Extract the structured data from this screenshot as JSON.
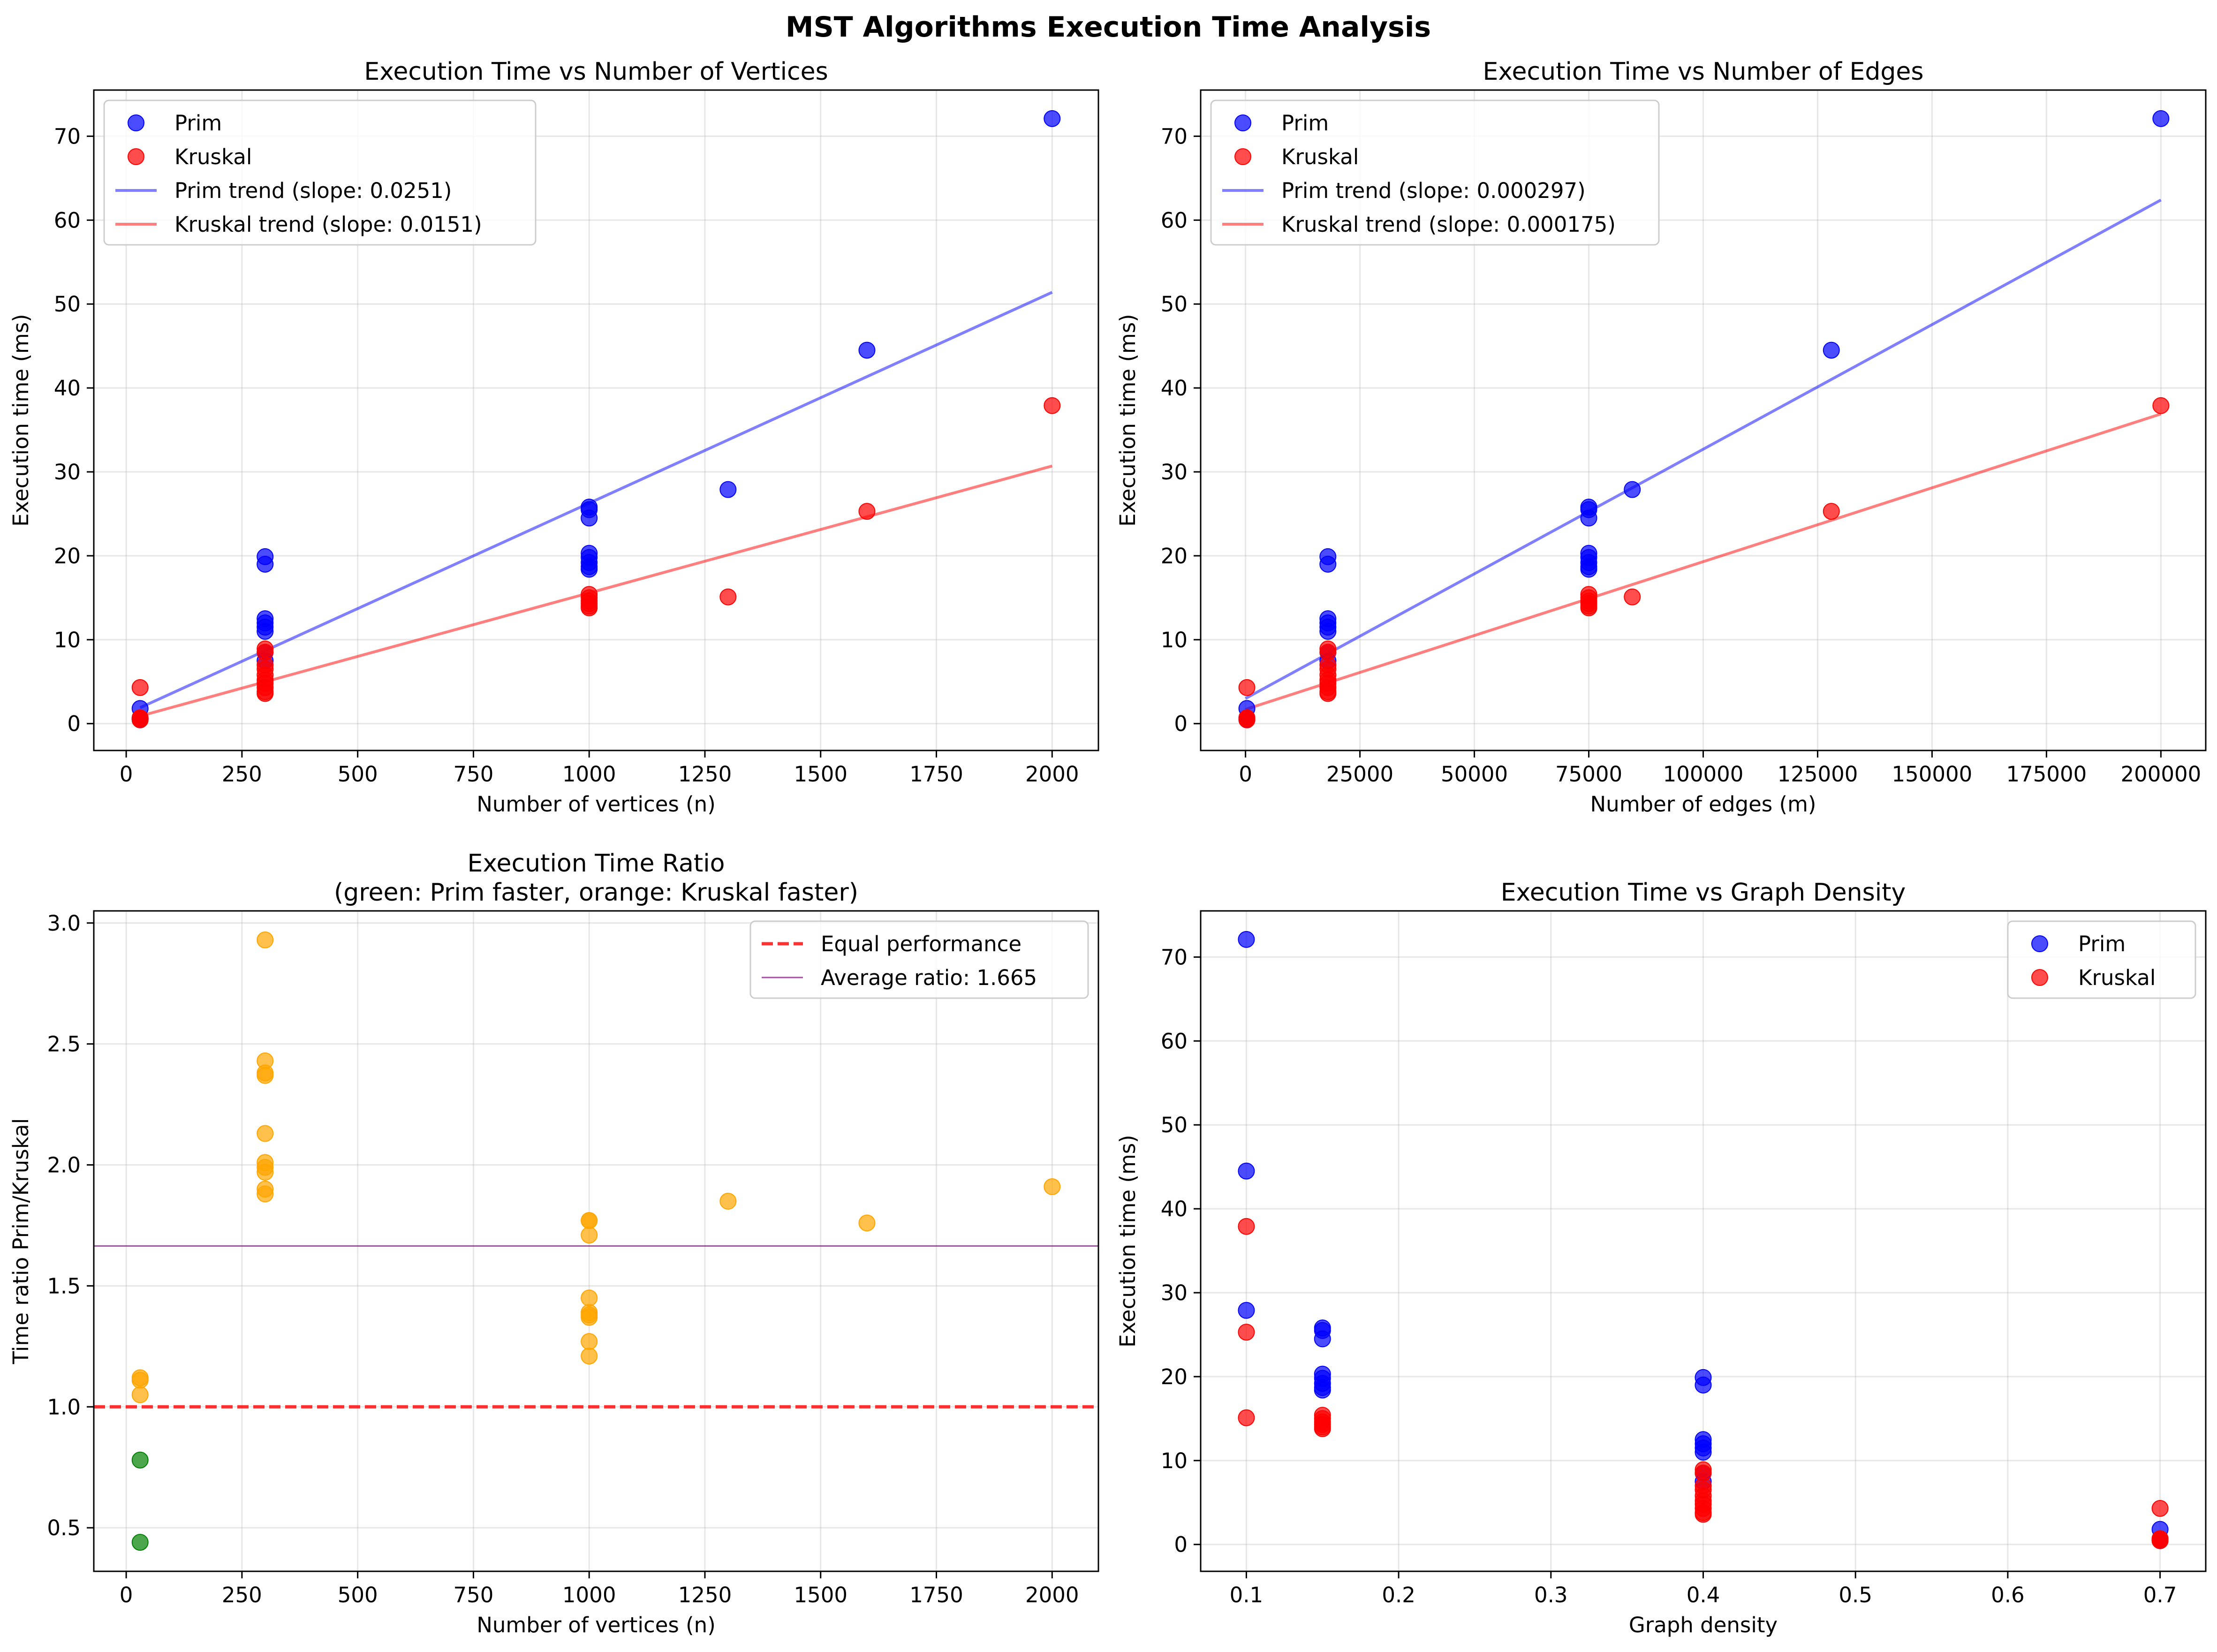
{
  "figure": {
    "suptitle": "MST Algorithms Execution Time Analysis"
  },
  "chart_data": [
    {
      "type": "scatter",
      "title": "Execution Time vs Number of Vertices",
      "xlabel": "Number of vertices (n)",
      "ylabel": "Execution time (ms)",
      "xlim": [
        -70,
        2100
      ],
      "ylim": [
        -3.2,
        75.5
      ],
      "xticks": [
        0,
        250,
        500,
        750,
        1000,
        1250,
        1500,
        1750,
        2000
      ],
      "yticks": [
        0,
        10,
        20,
        30,
        40,
        50,
        60,
        70
      ],
      "grid": true,
      "legend_position": "top-left",
      "series": [
        {
          "name": "Prim",
          "kind": "scatter",
          "color": "#0000ff",
          "points": [
            [
              30,
              1.8
            ],
            [
              30,
              0.6
            ],
            [
              30,
              0.5
            ],
            [
              300,
              19.9
            ],
            [
              300,
              19.0
            ],
            [
              300,
              12.5
            ],
            [
              300,
              12.0
            ],
            [
              300,
              11.5
            ],
            [
              300,
              11.0
            ],
            [
              300,
              8.5
            ],
            [
              300,
              7.5
            ],
            [
              1000,
              25.8
            ],
            [
              1000,
              25.5
            ],
            [
              1000,
              24.5
            ],
            [
              1000,
              20.3
            ],
            [
              1000,
              19.8
            ],
            [
              1000,
              19.2
            ],
            [
              1000,
              18.7
            ],
            [
              1000,
              18.4
            ],
            [
              1300,
              27.9
            ],
            [
              1600,
              44.5
            ],
            [
              2000,
              72.1
            ]
          ]
        },
        {
          "name": "Kruskal",
          "kind": "scatter",
          "color": "#ff0000",
          "points": [
            [
              30,
              4.3
            ],
            [
              30,
              0.7
            ],
            [
              30,
              0.6
            ],
            [
              30,
              0.45
            ],
            [
              300,
              8.9
            ],
            [
              300,
              8.5
            ],
            [
              300,
              7.0
            ],
            [
              300,
              6.5
            ],
            [
              300,
              5.8
            ],
            [
              300,
              5.2
            ],
            [
              300,
              4.8
            ],
            [
              300,
              4.3
            ],
            [
              300,
              3.8
            ],
            [
              300,
              3.6
            ],
            [
              1000,
              15.4
            ],
            [
              1000,
              15.0
            ],
            [
              1000,
              14.6
            ],
            [
              1000,
              14.3
            ],
            [
              1000,
              14.0
            ],
            [
              1000,
              13.8
            ],
            [
              1300,
              15.1
            ],
            [
              1600,
              25.3
            ],
            [
              2000,
              37.9
            ]
          ]
        },
        {
          "name": "Prim trend (slope: 0.0251)",
          "kind": "line",
          "color": "#0000ff",
          "points": [
            [
              30,
              1.9
            ],
            [
              2000,
              51.4
            ]
          ]
        },
        {
          "name": "Kruskal trend (slope: 0.0151)",
          "kind": "line",
          "color": "#ff0000",
          "points": [
            [
              30,
              0.9
            ],
            [
              2000,
              30.7
            ]
          ]
        }
      ]
    },
    {
      "type": "scatter",
      "title": "Execution Time vs Number of Edges",
      "xlabel": "Number of edges (m)",
      "ylabel": "Execution time (ms)",
      "xlim": [
        -9800,
        209800
      ],
      "ylim": [
        -3.2,
        75.5
      ],
      "xticks": [
        0,
        25000,
        50000,
        75000,
        100000,
        125000,
        150000,
        175000,
        200000
      ],
      "yticks": [
        0,
        10,
        20,
        30,
        40,
        50,
        60,
        70
      ],
      "grid": true,
      "legend_position": "top-left",
      "series": [
        {
          "name": "Prim",
          "kind": "scatter",
          "color": "#0000ff",
          "points": [
            [
              300,
              1.8
            ],
            [
              300,
              0.6
            ],
            [
              300,
              0.5
            ],
            [
              18000,
              19.9
            ],
            [
              18000,
              19.0
            ],
            [
              18000,
              12.5
            ],
            [
              18000,
              12.0
            ],
            [
              18000,
              11.5
            ],
            [
              18000,
              11.0
            ],
            [
              18000,
              8.5
            ],
            [
              18000,
              7.5
            ],
            [
              75000,
              25.8
            ],
            [
              75000,
              25.5
            ],
            [
              75000,
              24.5
            ],
            [
              75000,
              20.3
            ],
            [
              75000,
              19.8
            ],
            [
              75000,
              19.2
            ],
            [
              75000,
              18.7
            ],
            [
              75000,
              18.4
            ],
            [
              84500,
              27.9
            ],
            [
              128000,
              44.5
            ],
            [
              200000,
              72.1
            ]
          ]
        },
        {
          "name": "Kruskal",
          "kind": "scatter",
          "color": "#ff0000",
          "points": [
            [
              300,
              4.3
            ],
            [
              300,
              0.7
            ],
            [
              300,
              0.6
            ],
            [
              300,
              0.45
            ],
            [
              18000,
              8.9
            ],
            [
              18000,
              8.5
            ],
            [
              18000,
              7.0
            ],
            [
              18000,
              6.5
            ],
            [
              18000,
              5.8
            ],
            [
              18000,
              5.2
            ],
            [
              18000,
              4.8
            ],
            [
              18000,
              4.3
            ],
            [
              18000,
              3.8
            ],
            [
              18000,
              3.6
            ],
            [
              75000,
              15.4
            ],
            [
              75000,
              15.0
            ],
            [
              75000,
              14.6
            ],
            [
              75000,
              14.3
            ],
            [
              75000,
              14.0
            ],
            [
              75000,
              13.8
            ],
            [
              84500,
              15.1
            ],
            [
              128000,
              25.3
            ],
            [
              200000,
              37.9
            ]
          ]
        },
        {
          "name": "Prim trend (slope: 0.000297)",
          "kind": "line",
          "color": "#0000ff",
          "points": [
            [
              0,
              3.0
            ],
            [
              200000,
              62.4
            ]
          ]
        },
        {
          "name": "Kruskal trend (slope: 0.000175)",
          "kind": "line",
          "color": "#ff0000",
          "points": [
            [
              0,
              1.7
            ],
            [
              200000,
              36.9
            ]
          ]
        }
      ]
    },
    {
      "type": "scatter",
      "title": "Execution Time Ratio\n(green: Prim faster, orange: Kruskal faster)",
      "xlabel": "Number of vertices (n)",
      "ylabel": "Time ratio Prim/Kruskal",
      "xlim": [
        -70,
        2100
      ],
      "ylim": [
        0.32,
        3.05
      ],
      "xticks": [
        0,
        250,
        500,
        750,
        1000,
        1250,
        1500,
        1750,
        2000
      ],
      "yticks": [
        0.5,
        1.0,
        1.5,
        2.0,
        2.5,
        3.0
      ],
      "ytick_labels": [
        "0.5",
        "1.0",
        "1.5",
        "2.0",
        "2.5",
        "3.0"
      ],
      "grid": true,
      "legend_position": "top-right",
      "series": [
        {
          "name": "",
          "kind": "scatter",
          "color": "#ffa500",
          "points": [
            [
              30,
              1.12
            ],
            [
              30,
              1.11
            ],
            [
              30,
              1.05
            ],
            [
              300,
              2.93
            ],
            [
              300,
              2.43
            ],
            [
              300,
              2.38
            ],
            [
              300,
              2.37
            ],
            [
              300,
              2.13
            ],
            [
              300,
              2.01
            ],
            [
              300,
              1.99
            ],
            [
              300,
              1.97
            ],
            [
              300,
              1.9
            ],
            [
              300,
              1.88
            ],
            [
              1000,
              1.77
            ],
            [
              1000,
              1.77
            ],
            [
              1000,
              1.71
            ],
            [
              1000,
              1.45
            ],
            [
              1000,
              1.39
            ],
            [
              1000,
              1.38
            ],
            [
              1000,
              1.37
            ],
            [
              1000,
              1.27
            ],
            [
              1000,
              1.21
            ],
            [
              1300,
              1.85
            ],
            [
              1600,
              1.76
            ],
            [
              2000,
              1.91
            ]
          ]
        },
        {
          "name": "",
          "kind": "scatter",
          "color": "#008000",
          "points": [
            [
              30,
              0.78
            ],
            [
              30,
              0.44
            ]
          ]
        },
        {
          "name": "Equal performance",
          "kind": "hline",
          "color": "#ff0000",
          "dash": true,
          "y": 1.0
        },
        {
          "name": "Average ratio: 1.665",
          "kind": "hline",
          "color": "#800080",
          "dash": false,
          "y": 1.665
        }
      ]
    },
    {
      "type": "scatter",
      "title": "Execution Time vs Graph Density",
      "xlabel": "Graph density",
      "ylabel": "Execution time (ms)",
      "xlim": [
        0.07,
        0.73
      ],
      "ylim": [
        -3.2,
        75.5
      ],
      "xticks": [
        0.1,
        0.2,
        0.3,
        0.4,
        0.5,
        0.6,
        0.7
      ],
      "xtick_labels": [
        "0.1",
        "0.2",
        "0.3",
        "0.4",
        "0.5",
        "0.6",
        "0.7"
      ],
      "yticks": [
        0,
        10,
        20,
        30,
        40,
        50,
        60,
        70
      ],
      "grid": true,
      "legend_position": "top-right",
      "series": [
        {
          "name": "Prim",
          "kind": "scatter",
          "color": "#0000ff",
          "points": [
            [
              0.7,
              1.8
            ],
            [
              0.7,
              0.6
            ],
            [
              0.7,
              0.5
            ],
            [
              0.4,
              19.9
            ],
            [
              0.4,
              19.0
            ],
            [
              0.4,
              12.5
            ],
            [
              0.4,
              12.0
            ],
            [
              0.4,
              11.5
            ],
            [
              0.4,
              11.0
            ],
            [
              0.4,
              8.5
            ],
            [
              0.4,
              7.5
            ],
            [
              0.15,
              25.8
            ],
            [
              0.15,
              25.5
            ],
            [
              0.15,
              24.5
            ],
            [
              0.15,
              20.3
            ],
            [
              0.15,
              19.8
            ],
            [
              0.15,
              19.2
            ],
            [
              0.15,
              18.7
            ],
            [
              0.15,
              18.4
            ],
            [
              0.1,
              27.9
            ],
            [
              0.1,
              44.5
            ],
            [
              0.1,
              72.1
            ]
          ]
        },
        {
          "name": "Kruskal",
          "kind": "scatter",
          "color": "#ff0000",
          "points": [
            [
              0.7,
              4.3
            ],
            [
              0.7,
              0.7
            ],
            [
              0.7,
              0.6
            ],
            [
              0.7,
              0.45
            ],
            [
              0.4,
              8.9
            ],
            [
              0.4,
              8.5
            ],
            [
              0.4,
              7.0
            ],
            [
              0.4,
              6.5
            ],
            [
              0.4,
              5.8
            ],
            [
              0.4,
              5.2
            ],
            [
              0.4,
              4.8
            ],
            [
              0.4,
              4.3
            ],
            [
              0.4,
              3.8
            ],
            [
              0.4,
              3.6
            ],
            [
              0.15,
              15.4
            ],
            [
              0.15,
              15.0
            ],
            [
              0.15,
              14.6
            ],
            [
              0.15,
              14.3
            ],
            [
              0.15,
              14.0
            ],
            [
              0.15,
              13.8
            ],
            [
              0.1,
              15.1
            ],
            [
              0.1,
              25.3
            ],
            [
              0.1,
              37.9
            ]
          ]
        }
      ]
    }
  ]
}
